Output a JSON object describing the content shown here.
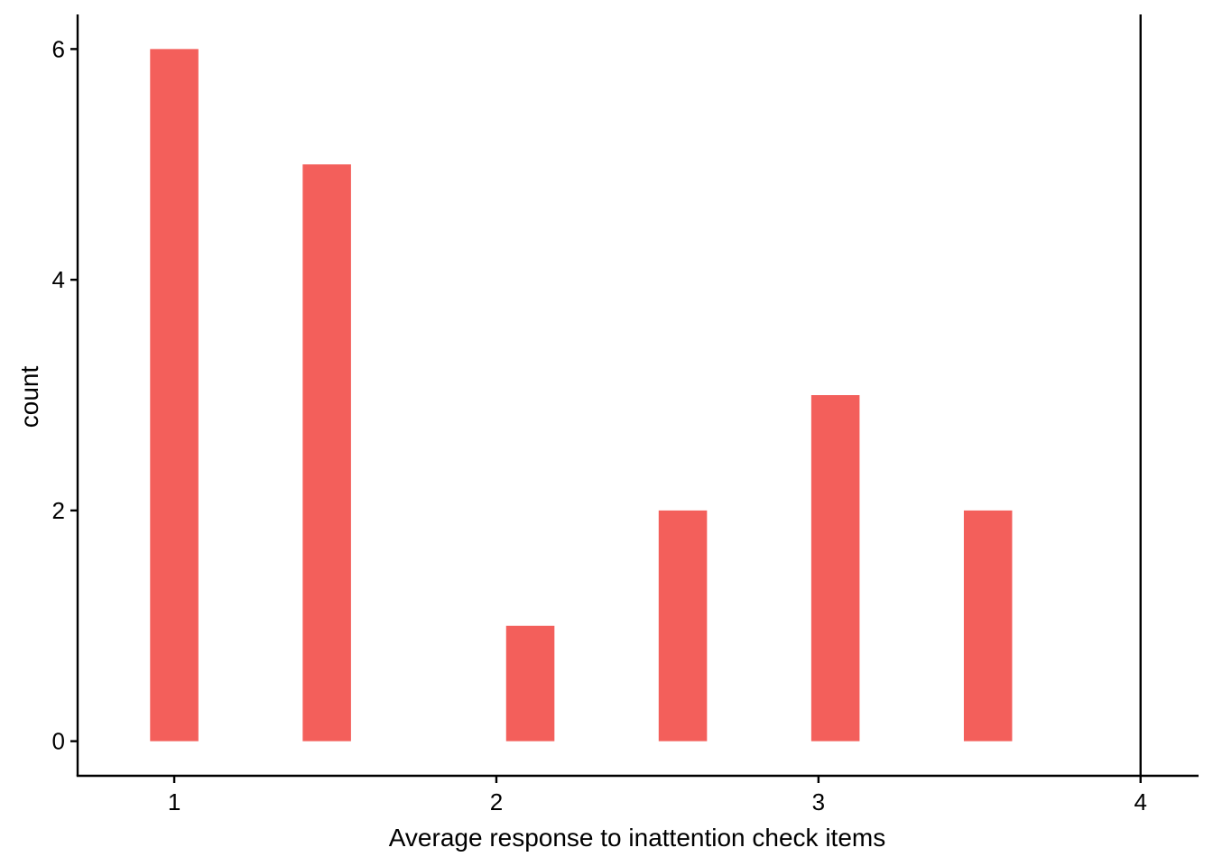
{
  "chart_data": {
    "type": "bar",
    "title": "",
    "xlabel": "Average response to inattention check items",
    "ylabel": "count",
    "bars": [
      {
        "x": 1.0,
        "count": 6
      },
      {
        "x": 1.4737,
        "count": 5
      },
      {
        "x": 2.1053,
        "count": 1
      },
      {
        "x": 2.5789,
        "count": 2
      },
      {
        "x": 3.0526,
        "count": 3
      },
      {
        "x": 3.5263,
        "count": 2
      }
    ],
    "bar_width": 0.15,
    "xlim": [
      0.7,
      4.18
    ],
    "ylim": [
      -0.3,
      6.3
    ],
    "x_ticks": [
      1,
      2,
      3,
      4
    ],
    "x_tick_labels": [
      "1",
      "2",
      "3",
      "4"
    ],
    "y_ticks": [
      0,
      2,
      4,
      6
    ],
    "y_tick_labels": [
      "0",
      "2",
      "4",
      "6"
    ],
    "reference_line_x": 4,
    "bar_color": "#F35F5B",
    "axis_color": "#000000",
    "grid": false,
    "legend": false
  }
}
